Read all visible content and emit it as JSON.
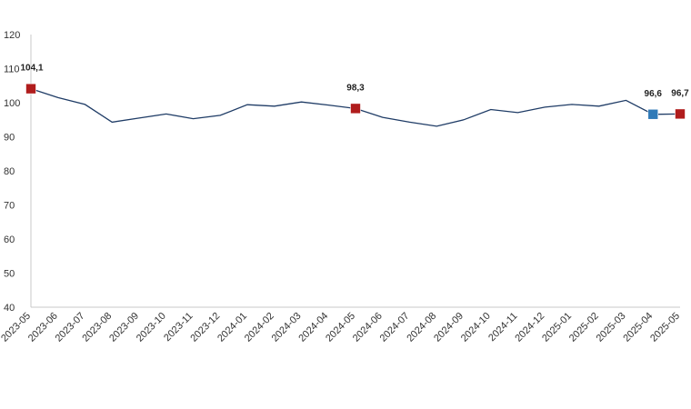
{
  "chart_data": {
    "type": "line",
    "title": "",
    "xlabel": "",
    "ylabel": "",
    "ylim": [
      40,
      120
    ],
    "yticks": [
      40,
      50,
      60,
      70,
      80,
      90,
      100,
      110,
      120
    ],
    "grid": false,
    "legend": "none",
    "categories": [
      "2023-05",
      "2023-06",
      "2023-07",
      "2023-08",
      "2023-09",
      "2023-10",
      "2023-11",
      "2023-12",
      "2024-01",
      "2024-02",
      "2024-03",
      "2024-04",
      "2024-05",
      "2024-06",
      "2024-07",
      "2024-08",
      "2024-09",
      "2024-10",
      "2024-11",
      "2024-12",
      "2025-01",
      "2025-02",
      "2025-03",
      "2025-04",
      "2025-05"
    ],
    "series": [
      {
        "values": [
          104.1,
          101.5,
          99.5,
          94.3,
          95.5,
          96.7,
          95.3,
          96.3,
          99.4,
          99.0,
          100.2,
          99.3,
          98.3,
          95.7,
          94.3,
          93.1,
          95.0,
          98.0,
          97.1,
          98.7,
          99.5,
          99.0,
          100.7,
          96.6,
          96.7
        ],
        "color": "#1f3c66"
      }
    ],
    "markers": [
      {
        "index": 0,
        "label": "104,1",
        "color": "#b01c1c"
      },
      {
        "index": 12,
        "label": "98,3",
        "color": "#b01c1c"
      },
      {
        "index": 23,
        "label": "96,6",
        "color": "#2f7ab8"
      },
      {
        "index": 24,
        "label": "96,7",
        "color": "#b01c1c"
      }
    ]
  }
}
